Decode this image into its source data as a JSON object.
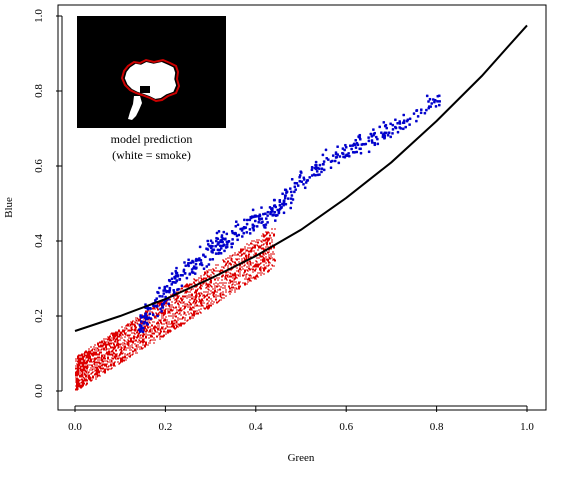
{
  "chart_data": {
    "type": "scatter",
    "xlabel": "Green",
    "ylabel": "Blue",
    "xlim": [
      0.0,
      1.0
    ],
    "ylim": [
      0.0,
      1.0
    ],
    "x_ticks": [
      "0.0",
      "0.2",
      "0.4",
      "0.6",
      "0.8",
      "1.0"
    ],
    "y_ticks": [
      "0.0",
      "0.2",
      "0.4",
      "0.6",
      "0.8",
      "1.0"
    ],
    "grid": false,
    "inset": {
      "caption_line1": "model prediction",
      "caption_line2": "(white = smoke)"
    },
    "colors": {
      "smoke_points": "#0000cc",
      "nonsmoke_points": "#dd0000",
      "boundary_curve": "#000000",
      "inset_background": "#000000",
      "inset_smoke": "#ffffff",
      "inset_outline": "#cc0000"
    },
    "boundary_curve": {
      "x": [
        0.0,
        0.1,
        0.2,
        0.3,
        0.4,
        0.5,
        0.6,
        0.7,
        0.8,
        0.9,
        1.0
      ],
      "y": [
        0.16,
        0.2,
        0.245,
        0.3,
        0.36,
        0.43,
        0.515,
        0.61,
        0.72,
        0.84,
        0.975
      ]
    },
    "smoke_points_trend": {
      "x": [
        0.14,
        0.18,
        0.22,
        0.26,
        0.3,
        0.34,
        0.38,
        0.42,
        0.46,
        0.5,
        0.56,
        0.62,
        0.68,
        0.74,
        0.8,
        0.83
      ],
      "y": [
        0.18,
        0.24,
        0.29,
        0.34,
        0.38,
        0.41,
        0.44,
        0.47,
        0.51,
        0.56,
        0.62,
        0.66,
        0.69,
        0.73,
        0.78,
        0.82
      ]
    },
    "nonsmoke_points_range": {
      "x": [
        0.0,
        0.44
      ],
      "y_lower_at_x0": 0.0,
      "y_upper_at_x0": 0.09,
      "y_lower_at_xmax": 0.33,
      "y_upper_at_xmax": 0.44
    }
  }
}
